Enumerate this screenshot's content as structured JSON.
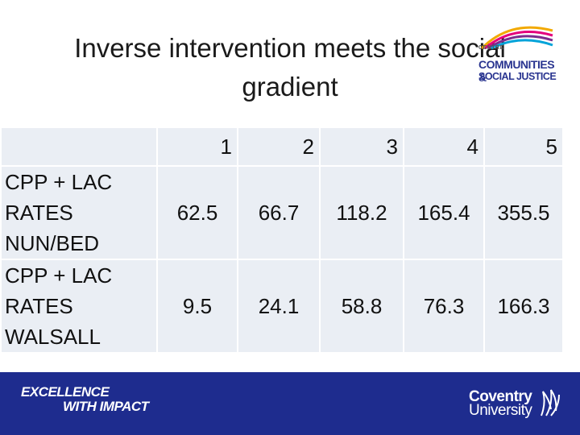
{
  "slide": {
    "title_line1": "Inverse intervention meets the social",
    "title_line2": "gradient"
  },
  "logo": {
    "small_text": "CENTRE",
    "line1": "COMMUNITIES &",
    "line2": "SOCIAL JUSTICE"
  },
  "table": {
    "headers": [
      "1",
      "2",
      "3",
      "4",
      "5"
    ],
    "rows": [
      {
        "label_lines": [
          "CPP + LAC",
          "RATES",
          "NUN/BED"
        ],
        "values": [
          "62.5",
          "66.7",
          "118.2",
          "165.4",
          "355.5"
        ]
      },
      {
        "label_lines": [
          "CPP + LAC",
          "RATES",
          "WALSALL"
        ],
        "values": [
          "9.5",
          "24.1",
          "58.8",
          "76.3",
          "166.3"
        ]
      }
    ]
  },
  "footer": {
    "excellence_line1": "EXCELLENCE",
    "excellence_line2": "WITH IMPACT",
    "university_line1": "Coventry",
    "university_line2": "University",
    "background_color": "#1e2c8e"
  }
}
